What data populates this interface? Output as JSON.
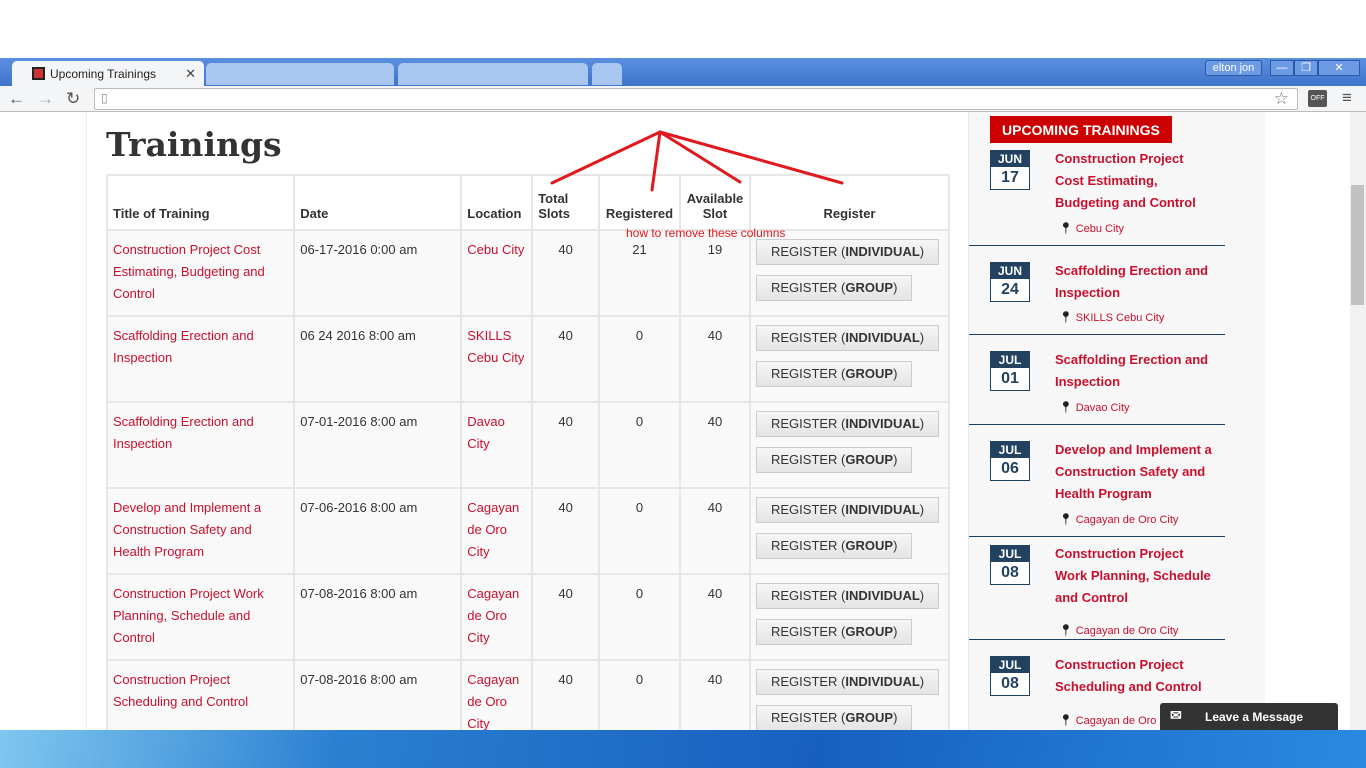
{
  "browser": {
    "tab_active": "Upcoming Trainings",
    "user": "elton jon",
    "off_badge": "OFF"
  },
  "page": {
    "title": "Trainings",
    "annotation": "how to remove these columns",
    "headers": [
      "Title of Training",
      "Date",
      "Location",
      "Total Slots",
      "Registered",
      "Available Slot",
      "Register"
    ],
    "btn_individual_prefix": "REGISTER (",
    "btn_individual_bold": "INDIVIDUAL",
    "btn_group_bold": "GROUP",
    "btn_suffix": ")",
    "rows": [
      {
        "title": "Construction Project Cost Estimating, Budgeting and Control",
        "date": "06-17-2016 0:00 am",
        "location": "Cebu City",
        "total": "40",
        "registered": "21",
        "available": "19"
      },
      {
        "title": "Scaffolding Erection and Inspection",
        "date": "06 24 2016 8:00 am",
        "location": "SKILLS Cebu City",
        "total": "40",
        "registered": "0",
        "available": "40"
      },
      {
        "title": "Scaffolding Erection and Inspection",
        "date": "07-01-2016 8:00 am",
        "location": "Davao City",
        "total": "40",
        "registered": "0",
        "available": "40"
      },
      {
        "title": "Develop and Implement a Construction Safety and Health Program",
        "date": "07-06-2016 8:00 am",
        "location": "Cagayan de Oro City",
        "total": "40",
        "registered": "0",
        "available": "40"
      },
      {
        "title": "Construction Project Work Planning, Schedule and Control",
        "date": "07-08-2016 8:00 am",
        "location": "Cagayan de Oro City",
        "total": "40",
        "registered": "0",
        "available": "40"
      },
      {
        "title": "Construction Project Scheduling and Control",
        "date": "07-08-2016 8:00 am",
        "location": "Cagayan de Oro City",
        "total": "40",
        "registered": "0",
        "available": "40"
      }
    ]
  },
  "sidebar": {
    "heading": "UPCOMING TRAININGS",
    "items": [
      {
        "month": "JUN",
        "day": "17",
        "title": "Construction Project Cost Estimating, Budgeting and Control",
        "location": "Cebu City"
      },
      {
        "month": "JUN",
        "day": "24",
        "title": "Scaffolding Erection and Inspection",
        "location": "SKILLS Cebu City"
      },
      {
        "month": "JUL",
        "day": "01",
        "title": "Scaffolding Erection and Inspection",
        "location": "Davao City"
      },
      {
        "month": "JUL",
        "day": "06",
        "title": "Develop and Implement a Construction Safety and Health Program",
        "location": "Cagayan de Oro City"
      },
      {
        "month": "JUL",
        "day": "08",
        "title": "Construction Project Work Planning, Schedule and Control",
        "location": "Cagayan de Oro City"
      },
      {
        "month": "JUL",
        "day": "08",
        "title": "Construction Project Scheduling and Control",
        "location": "Cagayan de Oro"
      }
    ]
  },
  "chat": {
    "label": "Leave a Message"
  },
  "colors": {
    "accent": "#cc0000",
    "navy": "#23425f",
    "annotation": "#e0191e"
  }
}
